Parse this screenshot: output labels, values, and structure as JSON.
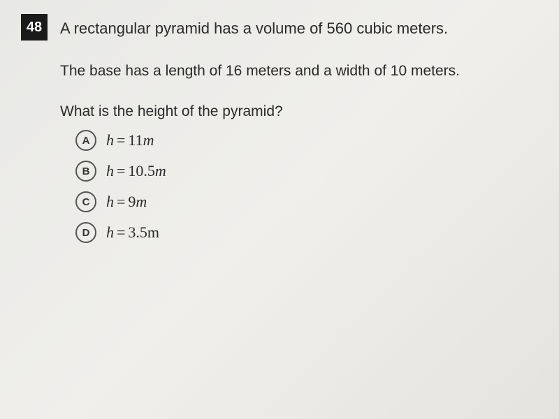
{
  "question": {
    "number": "48",
    "text_line1": "A rectangular pyramid has a volume of 560 cubic meters.",
    "text_line2": "The base has a length of 16 meters and a width of 10 meters.",
    "prompt": "What is the height of the pyramid?"
  },
  "choices": [
    {
      "letter": "A",
      "var": "h",
      "value": "11",
      "unit": "m"
    },
    {
      "letter": "B",
      "var": "h",
      "value": "10.5",
      "unit": "m"
    },
    {
      "letter": "C",
      "var": "h",
      "value": "9",
      "unit": "m"
    },
    {
      "letter": "D",
      "var": "h",
      "value": "3.5",
      "unit": "m"
    }
  ],
  "styling": {
    "background_gradient": [
      "#e8e8e6",
      "#f0efec",
      "#e5e3de"
    ],
    "number_badge_bg": "#1a1a1a",
    "number_badge_fg": "#ffffff",
    "text_color": "#2a2a2a",
    "choice_circle_border": "#555555",
    "question_fontsize": 22,
    "choice_fontsize": 22,
    "choice_circle_size": 30
  }
}
